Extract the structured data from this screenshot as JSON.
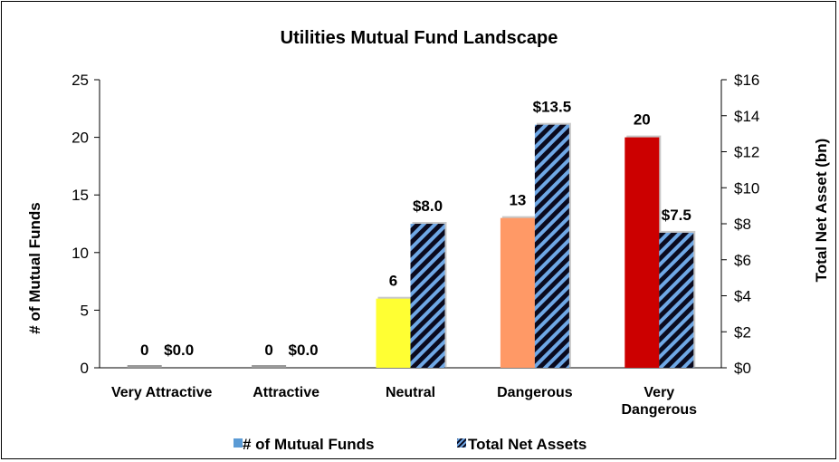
{
  "chart_data": {
    "type": "bar",
    "title": "Utilities Mutual Fund Landscape",
    "categories": [
      "Very Attractive",
      "Attractive",
      "Neutral",
      "Dangerous",
      "Very Dangerous"
    ],
    "series": [
      {
        "name": "# of Mutual Funds",
        "axis": "left",
        "values": [
          0,
          0,
          6,
          13,
          20
        ],
        "labels": [
          "0",
          "0",
          "6",
          "13",
          "20"
        ],
        "colors": [
          "#8faadc",
          "#8faadc",
          "#ffff33",
          "#ff9966",
          "#cc0000"
        ],
        "legend_color": "#5b9bd5"
      },
      {
        "name": "Total Net Assets",
        "axis": "right",
        "values": [
          0.0,
          0.0,
          8.0,
          13.5,
          7.5
        ],
        "labels": [
          "$0.0",
          "$0.0",
          "$8.0",
          "$13.5",
          "$7.5"
        ],
        "pattern": "diagonal-stripes",
        "colors": [
          "#0a0a1e",
          "#6fa8e6"
        ]
      }
    ],
    "ylabel": "# of Mutual Funds",
    "y2label": "Total Net Asset (bn)",
    "ylim": [
      0,
      25
    ],
    "yticks": [
      "0",
      "5",
      "10",
      "15",
      "20",
      "25"
    ],
    "y2lim": [
      0,
      16
    ],
    "y2ticks": [
      "$0",
      "$2",
      "$4",
      "$6",
      "$8",
      "$10",
      "$12",
      "$14",
      "$16"
    ],
    "grid": false,
    "legend": "bottom"
  }
}
